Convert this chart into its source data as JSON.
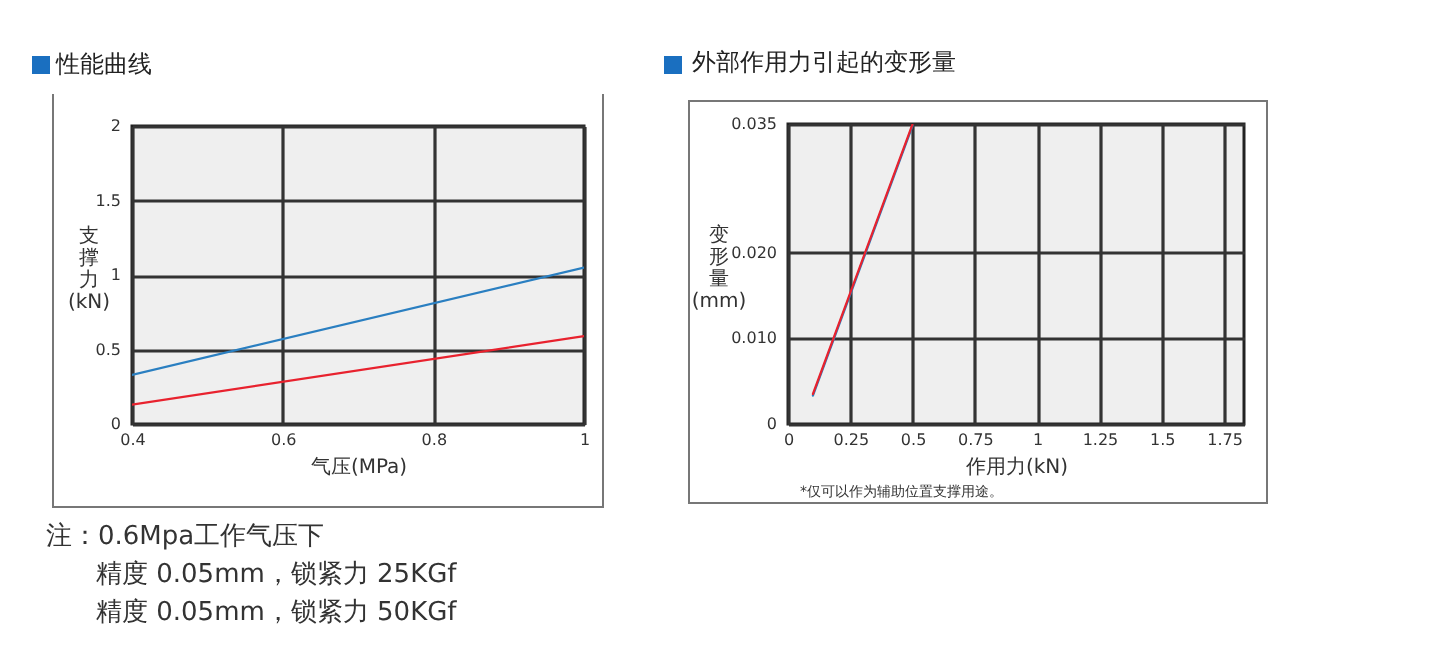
{
  "chart_data": [
    {
      "type": "line",
      "title": "性能曲线",
      "xlabel": "气压(MPa)",
      "ylabel": "支撑力(kN)",
      "xlim": [
        0.4,
        1
      ],
      "xticks": [
        0.4,
        0.6,
        0.8,
        1
      ],
      "ylim": [
        0,
        2
      ],
      "yticks": [
        0,
        0.5,
        1,
        1.5,
        2
      ],
      "grid": true,
      "series": [
        {
          "color": "#2a7fc1",
          "x": [
            0.4,
            1
          ],
          "values": [
            0.33,
            1.05
          ]
        },
        {
          "color": "#e8222e",
          "x": [
            0.4,
            1
          ],
          "values": [
            0.13,
            0.59
          ]
        }
      ],
      "annotations": [
        "注：0.6Mpa工作气压下",
        "精度 0.05mm，锁紧力 25KGf",
        "精度 0.05mm，锁紧力 50KGf"
      ]
    },
    {
      "type": "line",
      "title": "外部作用力引起的变形量",
      "xlabel": "作用力(kN)",
      "ylabel": "变形量(mm)",
      "xlim": [
        0,
        1.83
      ],
      "xticks": [
        0,
        0.25,
        0.5,
        0.75,
        1,
        1.25,
        1.5,
        1.75
      ],
      "ylim": [
        0,
        0.035
      ],
      "yticks": [
        0,
        {
          "value": 0.01,
          "label": "0.010"
        },
        {
          "value": 0.02,
          "label": "0.020"
        },
        0.035
      ],
      "grid": true,
      "series": [
        {
          "color": "#2a7fc1",
          "x": [
            0.1,
            0.5
          ],
          "values": [
            0.0033,
            0.0348
          ]
        },
        {
          "color": "#e8222e",
          "x": [
            0.1,
            0.5
          ],
          "values": [
            0.0035,
            0.035
          ]
        }
      ],
      "annotations": [
        "*仅可以作为辅助位置支撑用途。"
      ]
    }
  ]
}
